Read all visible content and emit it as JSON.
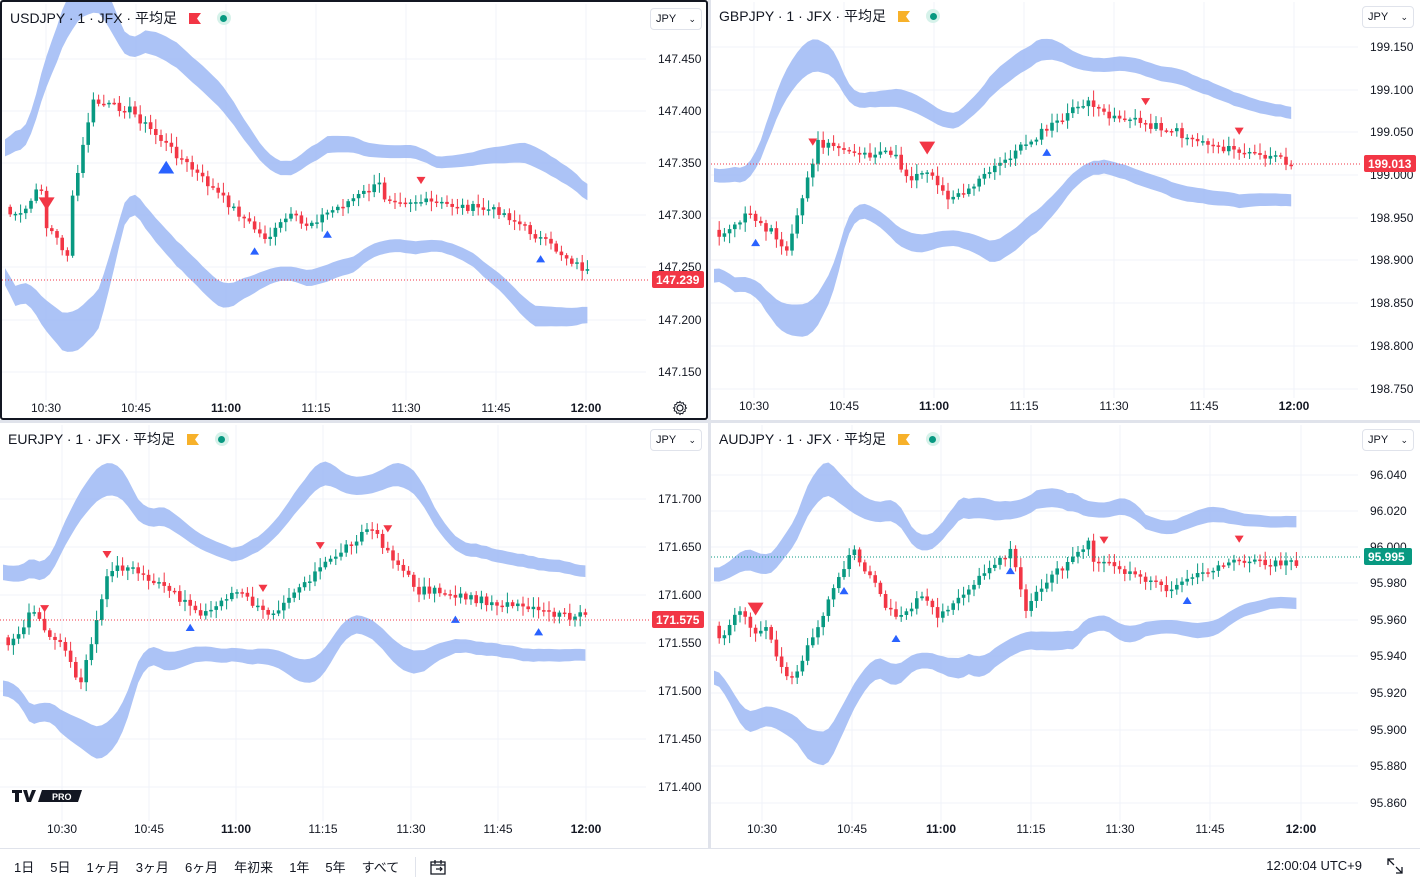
{
  "panes": [
    {
      "id": "usdjpy",
      "symbol": "USDJPY · 1 · JFX · 平均足",
      "flag_color": "#f23645",
      "active": true,
      "currency": "JPY",
      "y_ticks": [
        "147.450",
        "147.400",
        "147.350",
        "147.300",
        "147.250",
        "147.200",
        "147.150"
      ],
      "x_ticks": [
        "10:30",
        "10:45",
        "11:00",
        "11:15",
        "11:30",
        "11:45",
        "12:00"
      ],
      "last_price": "147.239",
      "last_color": "#f23645"
    },
    {
      "id": "gbpjpy",
      "symbol": "GBPJPY · 1 · JFX · 平均足",
      "flag_color": "#f7b12a",
      "active": false,
      "currency": "JPY",
      "y_ticks": [
        "199.150",
        "199.100",
        "199.050",
        "199.000",
        "198.950",
        "198.900",
        "198.850",
        "198.800",
        "198.750"
      ],
      "x_ticks": [
        "10:30",
        "10:45",
        "11:00",
        "11:15",
        "11:30",
        "11:45",
        "12:00"
      ],
      "last_price": "199.013",
      "last_color": "#f23645"
    },
    {
      "id": "eurjpy",
      "symbol": "EURJPY · 1 · JFX · 平均足",
      "flag_color": "#f7b12a",
      "active": false,
      "currency": "JPY",
      "y_ticks": [
        "171.700",
        "171.650",
        "171.600",
        "171.550",
        "171.500",
        "171.450",
        "171.400"
      ],
      "x_ticks": [
        "10:30",
        "10:45",
        "11:00",
        "11:15",
        "11:30",
        "11:45",
        "12:00"
      ],
      "last_price": "171.575",
      "last_color": "#f23645"
    },
    {
      "id": "audjpy",
      "symbol": "AUDJPY · 1 · JFX · 平均足",
      "flag_color": "#f7b12a",
      "active": false,
      "currency": "JPY",
      "y_ticks": [
        "96.040",
        "96.020",
        "96.000",
        "95.980",
        "95.960",
        "95.940",
        "95.920",
        "95.900",
        "95.880",
        "95.860"
      ],
      "x_ticks": [
        "10:30",
        "10:45",
        "11:00",
        "11:15",
        "11:30",
        "11:45",
        "12:00"
      ],
      "last_price": "95.995",
      "last_color": "#089981"
    }
  ],
  "bottom_bar": {
    "ranges": [
      "1日",
      "5日",
      "1ヶ月",
      "3ヶ月",
      "6ヶ月",
      "年初来",
      "1年",
      "5年",
      "すべて"
    ],
    "clock": "12:00:04 UTC+9"
  },
  "logo_text": "PRO",
  "colors": {
    "up": "#089981",
    "down": "#f23645",
    "band": "#9db8f5",
    "signal_up": "#2962ff",
    "signal_down": "#f23645"
  }
}
